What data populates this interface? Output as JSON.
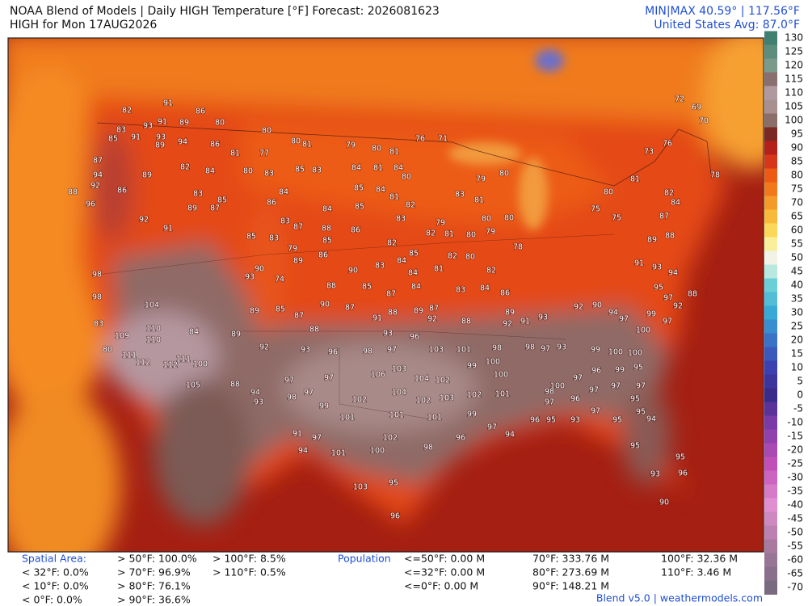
{
  "header": {
    "title": "NOAA Blend of Models | Daily HIGH Temperature [°F] Forecast: 2026081623",
    "subtitle": "HIGH for Mon 17AUG2026",
    "minmax": "MIN|MAX 40.59° | 117.56°F",
    "average": "United States Avg: 87.0°F"
  },
  "colorbar": {
    "ticks": [
      130,
      125,
      120,
      115,
      110,
      105,
      100,
      95,
      90,
      85,
      80,
      75,
      70,
      65,
      60,
      55,
      50,
      45,
      40,
      35,
      30,
      25,
      20,
      15,
      10,
      5,
      0,
      -5,
      -10,
      -15,
      -20,
      -25,
      -30,
      -35,
      -40,
      -45,
      -50,
      -55,
      -60,
      -65,
      -70
    ]
  },
  "map": {
    "station_temps": [
      82,
      91,
      86,
      93,
      91,
      89,
      80,
      83,
      85,
      91,
      93,
      89,
      94,
      86,
      81,
      77,
      87,
      89,
      82,
      84,
      80,
      83,
      94,
      92,
      86,
      88,
      96,
      92,
      91,
      89,
      83,
      85,
      87,
      86,
      84,
      80,
      80,
      81,
      79,
      80,
      81,
      76,
      71,
      85,
      83,
      84,
      81,
      84,
      80,
      85,
      84,
      81,
      82,
      85,
      84,
      83,
      87,
      88,
      86,
      83,
      79,
      82,
      82,
      81,
      80,
      79,
      85,
      83,
      79,
      85,
      89,
      86,
      90,
      83,
      84,
      85,
      84,
      81,
      82,
      80,
      82,
      80,
      79,
      83,
      81,
      80,
      80,
      78,
      75,
      75,
      80,
      81,
      82,
      84,
      87,
      88,
      89,
      91,
      93,
      94,
      88,
      73,
      76,
      72,
      69,
      70,
      78,
      88,
      85,
      87,
      84,
      83,
      84,
      86,
      90,
      87,
      91,
      88,
      89,
      87,
      92,
      88,
      89,
      92,
      91,
      93,
      92,
      90,
      94,
      97,
      100,
      99,
      97,
      95,
      97,
      92,
      98,
      98,
      104,
      83,
      109,
      110,
      110,
      84,
      89,
      92,
      111,
      112,
      112,
      111,
      100,
      105,
      88,
      94,
      93,
      97,
      98,
      97,
      91,
      97,
      94,
      101,
      90,
      93,
      74,
      89,
      85,
      87,
      88,
      80,
      93,
      96,
      98,
      97,
      93,
      96,
      103,
      101,
      106,
      103,
      104,
      102,
      99,
      100,
      100,
      97,
      102,
      99,
      101,
      104,
      102,
      103,
      102,
      101,
      101,
      101,
      99,
      97,
      94,
      102,
      100,
      98,
      96,
      103,
      95,
      96,
      98,
      98,
      97,
      93,
      100,
      97,
      99,
      100,
      100,
      96,
      99,
      97,
      97,
      96,
      97,
      95,
      95,
      97,
      95,
      94,
      93,
      95,
      96,
      95,
      95,
      93,
      96,
      90,
      95,
      98,
      97
    ]
  },
  "footer": {
    "spatial_area": {
      "label": "Spatial Area:",
      "entries": [
        "< 32°F: 0.0%",
        "< 10°F: 0.0%",
        "< 0°F: 0.0%",
        "> 50°F: 100.0%",
        "> 70°F: 96.9%",
        "> 80°F: 76.1%",
        "> 90°F: 36.6%",
        "> 100°F: 8.5%",
        "> 110°F: 0.5%"
      ]
    },
    "population": {
      "label": "Population",
      "entries": [
        "<=50°F: 0.00 M",
        "<=32°F: 0.00 M",
        "<=0°F: 0.00 M",
        "70°F: 333.76 M",
        "80°F: 273.69 M",
        "90°F: 148.21 M",
        "100°F: 32.36 M",
        "110°F: 3.46 M"
      ]
    },
    "credit": "Blend v5.0 | weathermodels.com"
  }
}
